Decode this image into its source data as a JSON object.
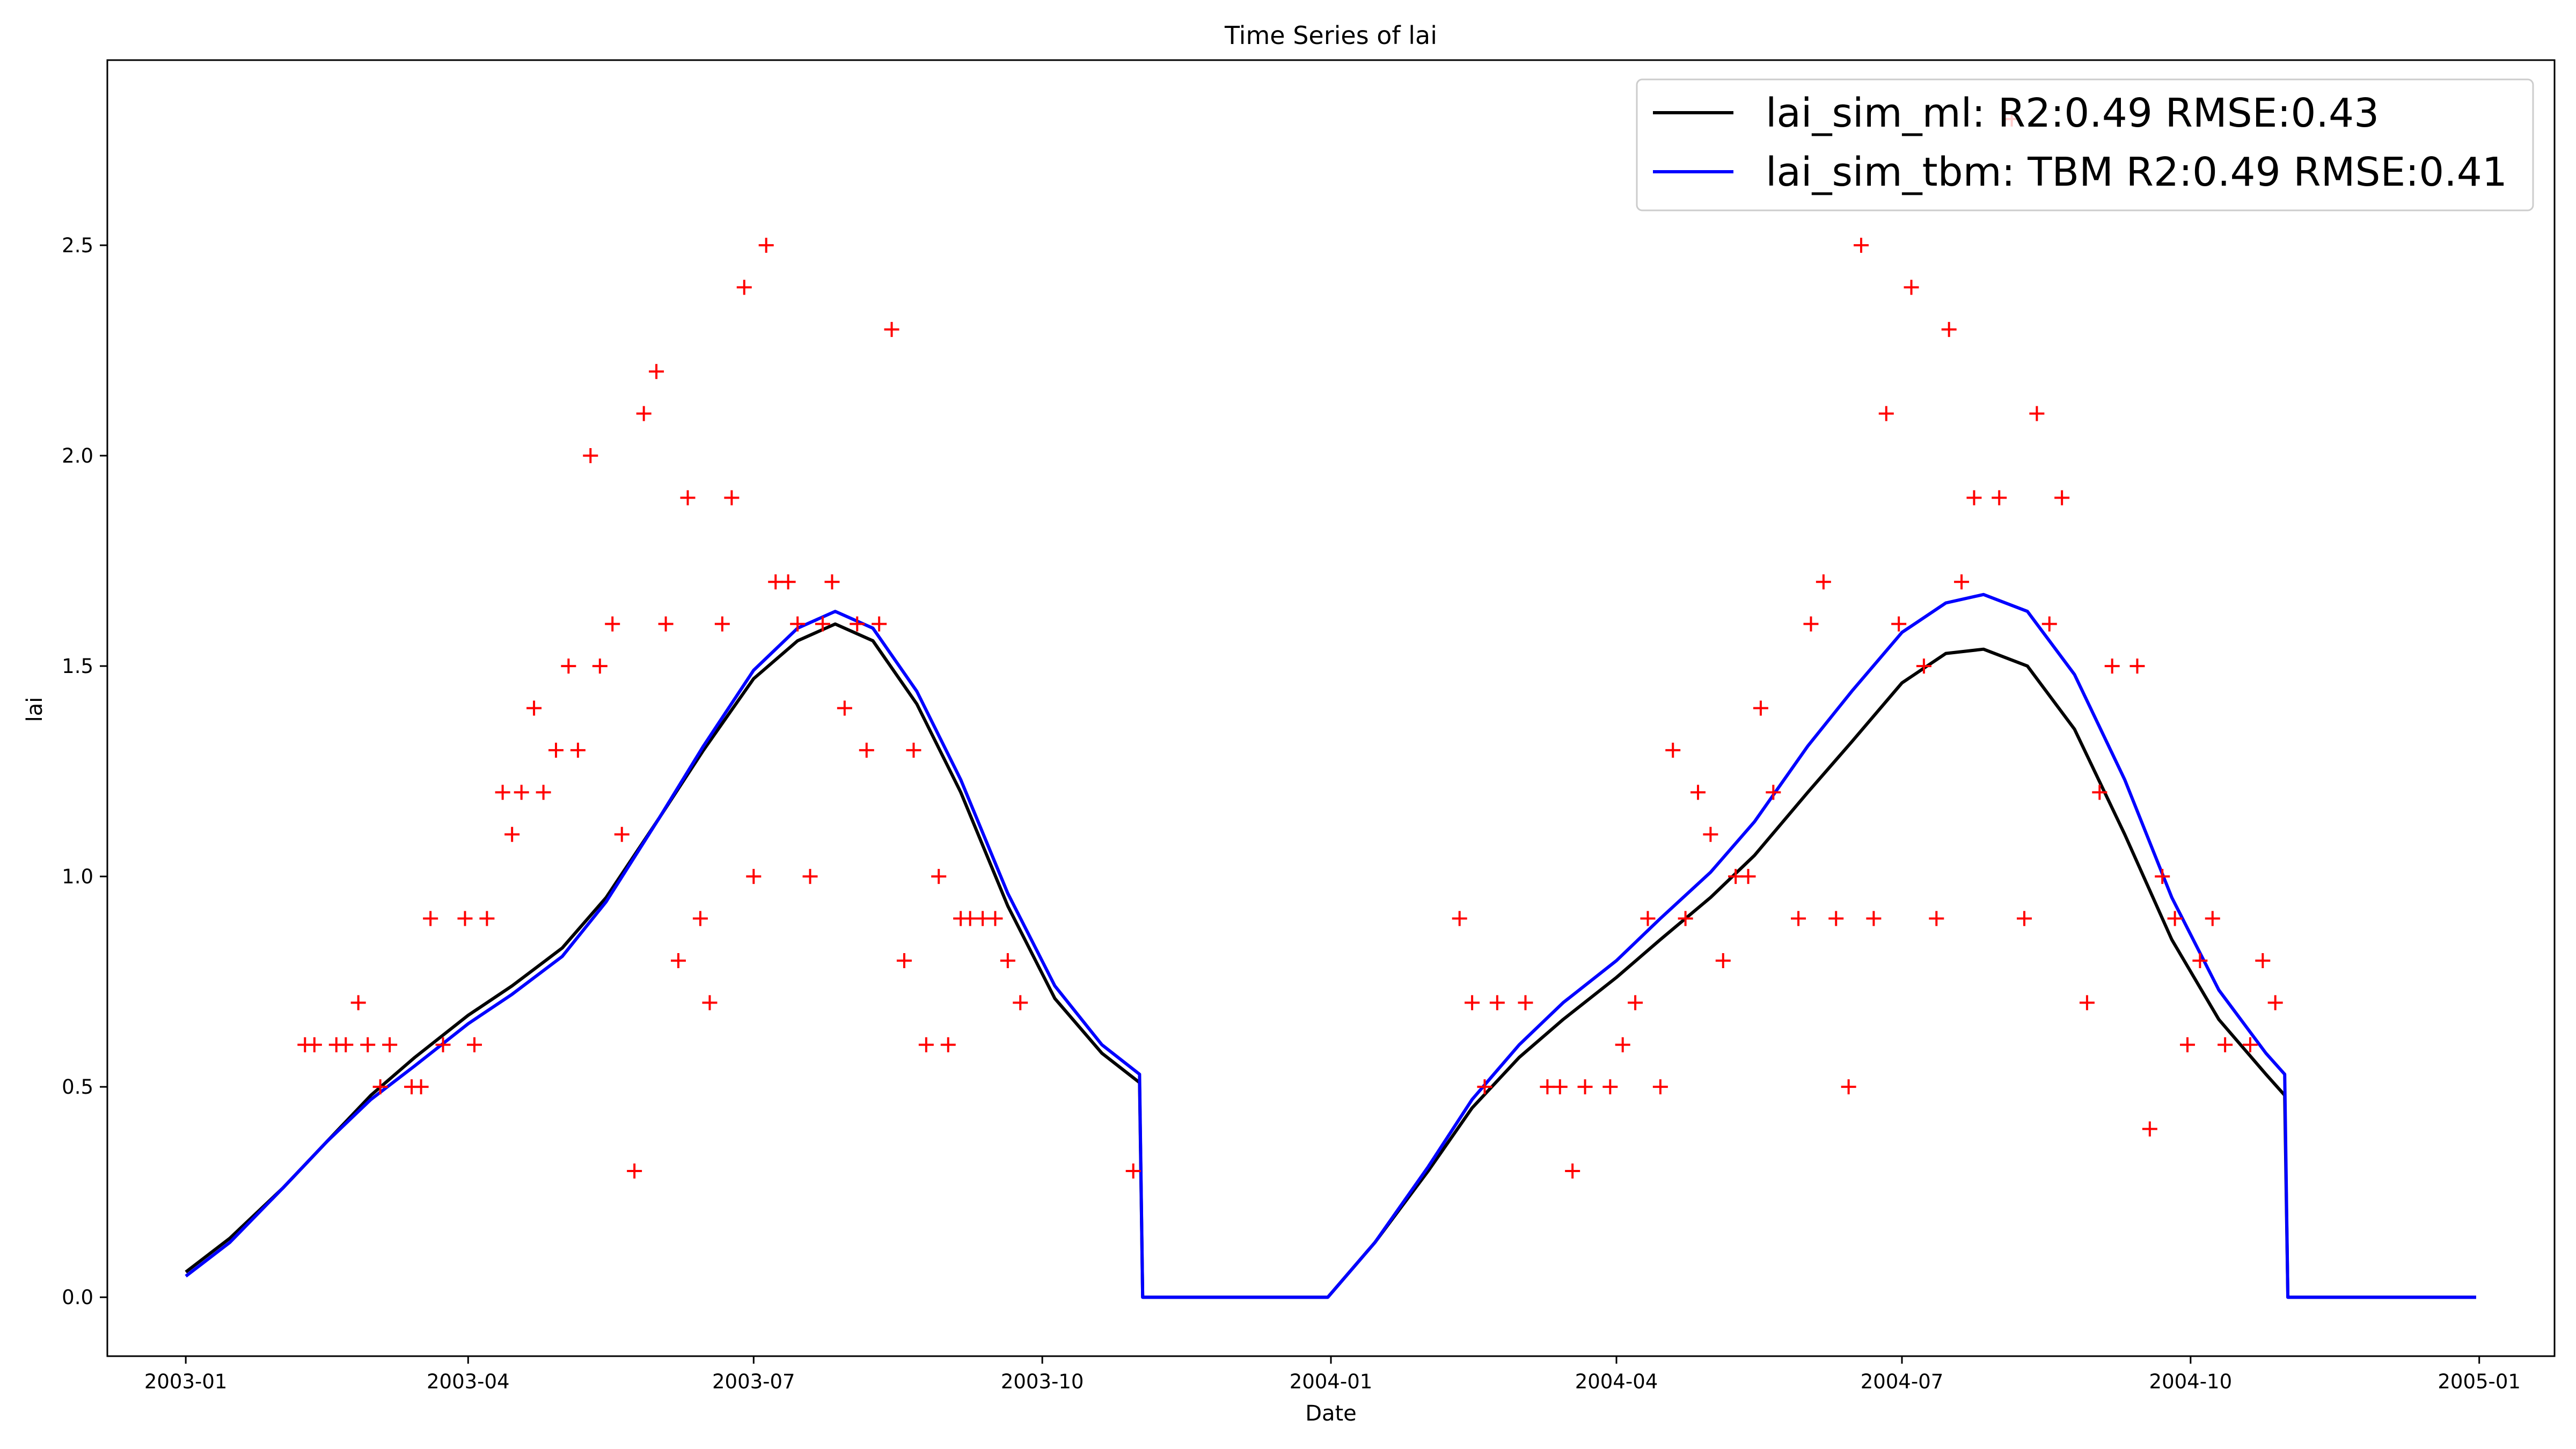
{
  "chart_data": {
    "type": "line",
    "title": "Time Series of lai",
    "xlabel": "Date",
    "ylabel": "lai",
    "xlim": [
      "2002-12-07",
      "2005-01-25"
    ],
    "ylim": [
      -0.14,
      2.94
    ],
    "x_ticks": [
      "2003-01",
      "2003-04",
      "2003-07",
      "2003-10",
      "2004-01",
      "2004-04",
      "2004-07",
      "2004-10",
      "2005-01"
    ],
    "y_ticks": [
      "0.0",
      "0.5",
      "1.0",
      "1.5",
      "2.0",
      "2.5"
    ],
    "grid": false,
    "legend_position": "upper right",
    "series": [
      {
        "name": "lai_sim_ml: R2:0.49 RMSE:0.43",
        "type": "line",
        "color": "#000000",
        "points": [
          [
            "2003-01-01",
            0.06
          ],
          [
            "2003-01-15",
            0.14
          ],
          [
            "2003-02-01",
            0.26
          ],
          [
            "2003-02-15",
            0.37
          ],
          [
            "2003-03-01",
            0.48
          ],
          [
            "2003-03-15",
            0.57
          ],
          [
            "2003-04-01",
            0.67
          ],
          [
            "2003-04-15",
            0.74
          ],
          [
            "2003-05-01",
            0.83
          ],
          [
            "2003-05-15",
            0.95
          ],
          [
            "2003-06-01",
            1.14
          ],
          [
            "2003-06-15",
            1.3
          ],
          [
            "2003-07-01",
            1.47
          ],
          [
            "2003-07-15",
            1.56
          ],
          [
            "2003-07-27",
            1.6
          ],
          [
            "2003-08-08",
            1.56
          ],
          [
            "2003-08-22",
            1.41
          ],
          [
            "2003-09-05",
            1.2
          ],
          [
            "2003-09-20",
            0.93
          ],
          [
            "2003-10-05",
            0.71
          ],
          [
            "2003-10-20",
            0.58
          ],
          [
            "2003-11-01",
            0.51
          ],
          [
            "2003-11-02",
            0.0
          ],
          [
            "2003-12-31",
            0.0
          ],
          [
            "2004-01-15",
            0.13
          ],
          [
            "2004-02-01",
            0.3
          ],
          [
            "2004-02-15",
            0.45
          ],
          [
            "2004-03-01",
            0.57
          ],
          [
            "2004-03-15",
            0.66
          ],
          [
            "2004-04-01",
            0.76
          ],
          [
            "2004-04-15",
            0.85
          ],
          [
            "2004-05-01",
            0.95
          ],
          [
            "2004-05-15",
            1.05
          ],
          [
            "2004-06-01",
            1.2
          ],
          [
            "2004-06-15",
            1.32
          ],
          [
            "2004-07-01",
            1.46
          ],
          [
            "2004-07-15",
            1.53
          ],
          [
            "2004-07-27",
            1.54
          ],
          [
            "2004-08-10",
            1.5
          ],
          [
            "2004-08-25",
            1.35
          ],
          [
            "2004-09-10",
            1.1
          ],
          [
            "2004-09-25",
            0.85
          ],
          [
            "2004-10-10",
            0.66
          ],
          [
            "2004-10-25",
            0.53
          ],
          [
            "2004-10-31",
            0.48
          ],
          [
            "2004-11-01",
            0.0
          ],
          [
            "2004-12-31",
            0.0
          ]
        ]
      },
      {
        "name": "lai_sim_tbm: TBM R2:0.49 RMSE:0.41",
        "type": "line",
        "color": "#0000ff",
        "points": [
          [
            "2003-01-01",
            0.05
          ],
          [
            "2003-01-15",
            0.13
          ],
          [
            "2003-02-01",
            0.26
          ],
          [
            "2003-02-15",
            0.37
          ],
          [
            "2003-03-01",
            0.47
          ],
          [
            "2003-03-15",
            0.55
          ],
          [
            "2003-04-01",
            0.65
          ],
          [
            "2003-04-15",
            0.72
          ],
          [
            "2003-05-01",
            0.81
          ],
          [
            "2003-05-15",
            0.94
          ],
          [
            "2003-06-01",
            1.14
          ],
          [
            "2003-06-15",
            1.31
          ],
          [
            "2003-07-01",
            1.49
          ],
          [
            "2003-07-15",
            1.59
          ],
          [
            "2003-07-27",
            1.63
          ],
          [
            "2003-08-08",
            1.59
          ],
          [
            "2003-08-22",
            1.44
          ],
          [
            "2003-09-05",
            1.23
          ],
          [
            "2003-09-20",
            0.96
          ],
          [
            "2003-10-05",
            0.74
          ],
          [
            "2003-10-20",
            0.6
          ],
          [
            "2003-11-01",
            0.53
          ],
          [
            "2003-11-02",
            0.0
          ],
          [
            "2003-12-31",
            0.0
          ],
          [
            "2004-01-15",
            0.13
          ],
          [
            "2004-02-01",
            0.31
          ],
          [
            "2004-02-15",
            0.47
          ],
          [
            "2004-03-01",
            0.6
          ],
          [
            "2004-03-15",
            0.7
          ],
          [
            "2004-04-01",
            0.8
          ],
          [
            "2004-04-15",
            0.9
          ],
          [
            "2004-05-01",
            1.01
          ],
          [
            "2004-05-15",
            1.13
          ],
          [
            "2004-06-01",
            1.31
          ],
          [
            "2004-06-15",
            1.44
          ],
          [
            "2004-07-01",
            1.58
          ],
          [
            "2004-07-15",
            1.65
          ],
          [
            "2004-07-27",
            1.67
          ],
          [
            "2004-08-10",
            1.63
          ],
          [
            "2004-08-25",
            1.48
          ],
          [
            "2004-09-10",
            1.23
          ],
          [
            "2004-09-25",
            0.95
          ],
          [
            "2004-10-10",
            0.73
          ],
          [
            "2004-10-25",
            0.58
          ],
          [
            "2004-10-31",
            0.53
          ],
          [
            "2004-11-01",
            0.0
          ],
          [
            "2004-12-31",
            0.0
          ]
        ]
      },
      {
        "name": "",
        "type": "scatter",
        "marker": "+",
        "color": "#ff0000",
        "points": [
          [
            "2003-02-08",
            0.6
          ],
          [
            "2003-02-11",
            0.6
          ],
          [
            "2003-02-18",
            0.6
          ],
          [
            "2003-02-21",
            0.6
          ],
          [
            "2003-02-25",
            0.7
          ],
          [
            "2003-02-28",
            0.6
          ],
          [
            "2003-03-04",
            0.5
          ],
          [
            "2003-03-07",
            0.6
          ],
          [
            "2003-03-14",
            0.5
          ],
          [
            "2003-03-17",
            0.5
          ],
          [
            "2003-03-20",
            0.9
          ],
          [
            "2003-03-24",
            0.6
          ],
          [
            "2003-03-31",
            0.9
          ],
          [
            "2003-04-03",
            0.6
          ],
          [
            "2003-04-07",
            0.9
          ],
          [
            "2003-04-12",
            1.2
          ],
          [
            "2003-04-15",
            1.1
          ],
          [
            "2003-04-18",
            1.2
          ],
          [
            "2003-04-22",
            1.4
          ],
          [
            "2003-04-25",
            1.2
          ],
          [
            "2003-04-29",
            1.3
          ],
          [
            "2003-05-03",
            1.5
          ],
          [
            "2003-05-06",
            1.3
          ],
          [
            "2003-05-10",
            2.0
          ],
          [
            "2003-05-13",
            1.5
          ],
          [
            "2003-05-17",
            1.6
          ],
          [
            "2003-05-20",
            1.1
          ],
          [
            "2003-05-24",
            0.3
          ],
          [
            "2003-05-27",
            2.1
          ],
          [
            "2003-05-31",
            2.2
          ],
          [
            "2003-06-03",
            1.6
          ],
          [
            "2003-06-07",
            0.8
          ],
          [
            "2003-06-10",
            1.9
          ],
          [
            "2003-06-14",
            0.9
          ],
          [
            "2003-06-17",
            0.7
          ],
          [
            "2003-06-21",
            1.6
          ],
          [
            "2003-06-24",
            1.9
          ],
          [
            "2003-06-28",
            2.4
          ],
          [
            "2003-07-01",
            1.0
          ],
          [
            "2003-07-05",
            2.5
          ],
          [
            "2003-07-08",
            1.7
          ],
          [
            "2003-07-12",
            1.7
          ],
          [
            "2003-07-15",
            1.6
          ],
          [
            "2003-07-19",
            1.0
          ],
          [
            "2003-07-23",
            1.6
          ],
          [
            "2003-07-26",
            1.7
          ],
          [
            "2003-07-30",
            1.4
          ],
          [
            "2003-08-03",
            1.6
          ],
          [
            "2003-08-06",
            1.3
          ],
          [
            "2003-08-10",
            1.6
          ],
          [
            "2003-08-14",
            2.3
          ],
          [
            "2003-08-18",
            0.8
          ],
          [
            "2003-08-21",
            1.3
          ],
          [
            "2003-08-25",
            0.6
          ],
          [
            "2003-08-29",
            1.0
          ],
          [
            "2003-09-01",
            0.6
          ],
          [
            "2003-09-05",
            0.9
          ],
          [
            "2003-09-08",
            0.9
          ],
          [
            "2003-09-12",
            0.9
          ],
          [
            "2003-09-16",
            0.9
          ],
          [
            "2003-09-20",
            0.8
          ],
          [
            "2003-09-24",
            0.7
          ],
          [
            "2003-10-30",
            0.3
          ],
          [
            "2004-02-11",
            0.9
          ],
          [
            "2004-02-15",
            0.7
          ],
          [
            "2004-02-19",
            0.5
          ],
          [
            "2004-02-23",
            0.7
          ],
          [
            "2004-03-03",
            0.7
          ],
          [
            "2004-03-10",
            0.5
          ],
          [
            "2004-03-14",
            0.5
          ],
          [
            "2004-03-18",
            0.3
          ],
          [
            "2004-03-22",
            0.5
          ],
          [
            "2004-03-30",
            0.5
          ],
          [
            "2004-04-03",
            0.6
          ],
          [
            "2004-04-07",
            0.7
          ],
          [
            "2004-04-11",
            0.9
          ],
          [
            "2004-04-15",
            0.5
          ],
          [
            "2004-04-19",
            1.3
          ],
          [
            "2004-04-23",
            0.9
          ],
          [
            "2004-04-27",
            1.2
          ],
          [
            "2004-05-01",
            1.1
          ],
          [
            "2004-05-05",
            0.8
          ],
          [
            "2004-05-09",
            1.0
          ],
          [
            "2004-05-13",
            1.0
          ],
          [
            "2004-05-17",
            1.4
          ],
          [
            "2004-05-21",
            1.2
          ],
          [
            "2004-05-29",
            0.9
          ],
          [
            "2004-06-02",
            1.6
          ],
          [
            "2004-06-06",
            1.7
          ],
          [
            "2004-06-10",
            0.9
          ],
          [
            "2004-06-14",
            0.5
          ],
          [
            "2004-06-18",
            2.5
          ],
          [
            "2004-06-22",
            0.9
          ],
          [
            "2004-06-26",
            2.1
          ],
          [
            "2004-06-30",
            1.6
          ],
          [
            "2004-07-04",
            2.4
          ],
          [
            "2004-07-08",
            1.5
          ],
          [
            "2004-07-12",
            0.9
          ],
          [
            "2004-07-16",
            2.3
          ],
          [
            "2004-07-20",
            1.7
          ],
          [
            "2004-07-24",
            1.9
          ],
          [
            "2004-08-01",
            1.9
          ],
          [
            "2004-08-05",
            2.8
          ],
          [
            "2004-08-09",
            0.9
          ],
          [
            "2004-08-13",
            2.1
          ],
          [
            "2004-08-17",
            1.6
          ],
          [
            "2004-08-21",
            1.9
          ],
          [
            "2004-08-29",
            0.7
          ],
          [
            "2004-09-02",
            1.2
          ],
          [
            "2004-09-06",
            1.5
          ],
          [
            "2004-09-14",
            1.5
          ],
          [
            "2004-09-18",
            0.4
          ],
          [
            "2004-09-22",
            1.0
          ],
          [
            "2004-09-26",
            0.9
          ],
          [
            "2004-09-30",
            0.6
          ],
          [
            "2004-10-04",
            0.8
          ],
          [
            "2004-10-08",
            0.9
          ],
          [
            "2004-10-12",
            0.6
          ],
          [
            "2004-10-20",
            0.6
          ],
          [
            "2004-10-24",
            0.8
          ],
          [
            "2004-10-28",
            0.7
          ]
        ]
      }
    ]
  }
}
